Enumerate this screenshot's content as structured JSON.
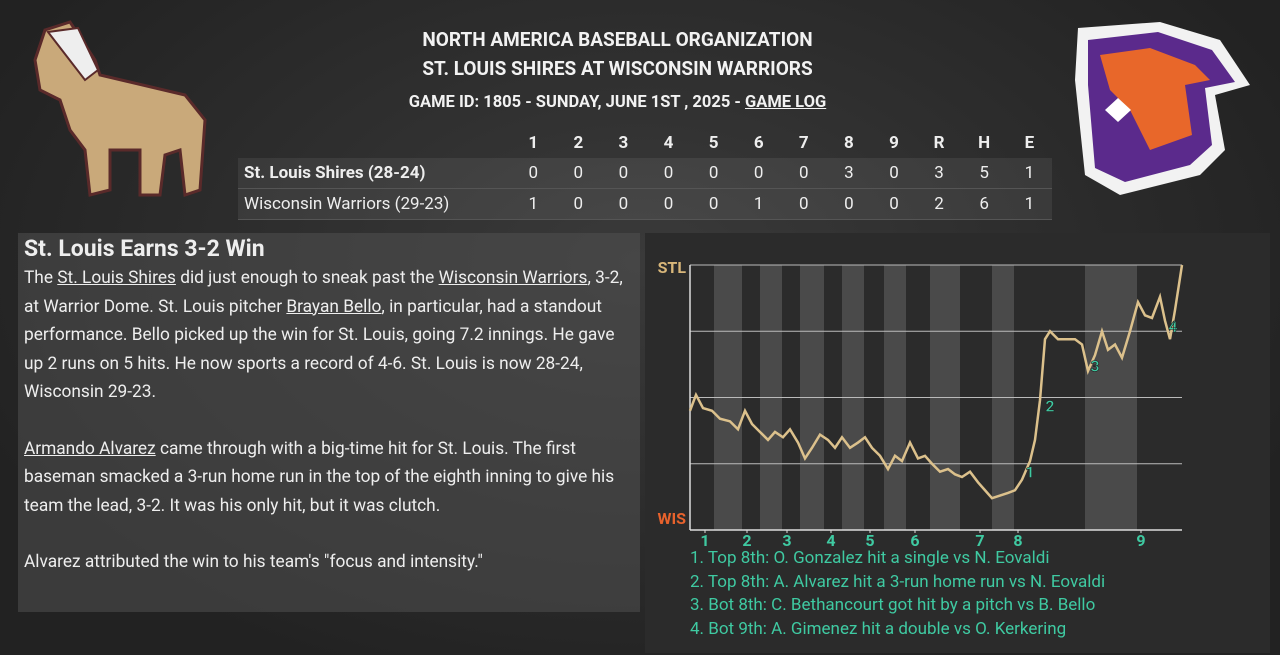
{
  "header": {
    "league": "NORTH AMERICA BASEBALL ORGANIZATION",
    "matchup": "ST. LOUIS SHIRES AT WISCONSIN WARRIORS",
    "game_info": "GAME ID: 1805 - SUNDAY, JUNE 1ST , 2025 - ",
    "game_log_link": "GAME LOG"
  },
  "box_score": {
    "columns": [
      "1",
      "2",
      "3",
      "4",
      "5",
      "6",
      "7",
      "8",
      "9",
      "R",
      "H",
      "E"
    ],
    "rows": [
      {
        "team": "St. Louis Shires (28-24)",
        "cells": [
          0,
          0,
          0,
          0,
          0,
          0,
          0,
          3,
          0,
          3,
          5,
          1
        ]
      },
      {
        "team": "Wisconsin Warriors (29-23)",
        "cells": [
          1,
          0,
          0,
          0,
          0,
          1,
          0,
          0,
          0,
          2,
          6,
          1
        ]
      }
    ]
  },
  "article": {
    "headline": "St. Louis Earns 3-2 Win",
    "paragraphs": [
      [
        "The ",
        {
          "link": "St. Louis Shires"
        },
        " did just enough to sneak past the ",
        {
          "link": "Wisconsin Warriors"
        },
        ", 3-2, at Warrior Dome. St. Louis pitcher ",
        {
          "link": "Brayan Bello"
        },
        ", in particular, had a standout performance. Bello picked up the win for St. Louis, going 7.2 innings. He gave up 2 runs on 5 hits. He now sports a record of 4-6. St. Louis is now 28-24, Wisconsin 29-23."
      ],
      [
        {
          "link": "Armando Alvarez"
        },
        " came through with a big-time hit for St. Louis. The first baseman smacked a 3-run home run in the top of the eighth inning to give his team the lead, 3-2. It was his only hit, but it was clutch."
      ],
      [
        "Alvarez attributed the win to his team's \"focus and intensity.\""
      ]
    ]
  },
  "chart_data": {
    "type": "line",
    "x": [
      0,
      6,
      13,
      22,
      30,
      40,
      48,
      55,
      62,
      70,
      78,
      85,
      93,
      100,
      108,
      115,
      122,
      130,
      138,
      145,
      152,
      160,
      168,
      175,
      182,
      190,
      198,
      205,
      212,
      220,
      228,
      235,
      242,
      250,
      258,
      265,
      272,
      280,
      288,
      295,
      302,
      310,
      318,
      325,
      332,
      340,
      345,
      350,
      355,
      360,
      368,
      375,
      385,
      392,
      398,
      405,
      412,
      418,
      425,
      432,
      440,
      448,
      455,
      462,
      470,
      475,
      480,
      485,
      492
    ],
    "series": [
      {
        "color": "#dcc18c",
        "values": [
          45,
          51,
          46,
          45,
          42,
          41,
          38,
          45,
          40,
          37,
          34,
          37,
          35,
          38,
          33,
          27,
          31,
          36,
          34,
          31,
          35,
          31,
          33,
          35,
          31,
          28,
          23,
          28,
          26,
          33,
          27,
          28,
          25,
          22,
          23,
          21,
          20,
          22,
          18,
          15,
          12,
          13,
          14,
          15,
          19,
          26,
          34,
          49,
          72,
          75,
          72,
          72,
          72,
          70,
          60,
          66,
          75,
          68,
          70,
          65,
          75,
          86,
          81,
          80,
          88,
          79,
          72,
          83,
          100
        ]
      }
    ],
    "xlim": [
      0,
      492
    ],
    "ylim": [
      0,
      100
    ],
    "xticks": [
      {
        "value": 15,
        "label": "1"
      },
      {
        "value": 57,
        "label": "2"
      },
      {
        "value": 97,
        "label": "3"
      },
      {
        "value": 141,
        "label": "4"
      },
      {
        "value": 180,
        "label": "5"
      },
      {
        "value": 225,
        "label": "6"
      },
      {
        "value": 290,
        "label": "7"
      },
      {
        "value": 328,
        "label": "8"
      },
      {
        "value": 451,
        "label": "9"
      }
    ],
    "yticks": [
      {
        "value": 0,
        "label": "WIS"
      },
      {
        "value": 25,
        "label": null
      },
      {
        "value": 50,
        "label": null
      },
      {
        "value": 75,
        "label": null
      },
      {
        "value": 100,
        "label": "STL"
      }
    ],
    "grid": true,
    "annotations": [
      {
        "x": 340,
        "y": 22,
        "label": "1"
      },
      {
        "x": 360,
        "y": 47,
        "label": "2"
      },
      {
        "x": 405,
        "y": 62,
        "label": "3"
      },
      {
        "x": 483,
        "y": 77,
        "label": "4"
      }
    ],
    "notes": [
      "1. Top 8th: O. Gonzalez hit a single vs N. Eovaldi",
      "2. Top 8th: A. Alvarez hit a 3-run home run vs N. Eovaldi",
      "3. Bot 8th: C. Bethancourt got hit by a pitch vs B. Bello",
      "4. Bot 9th: A. Gimenez hit a double vs O. Kerkering"
    ]
  }
}
